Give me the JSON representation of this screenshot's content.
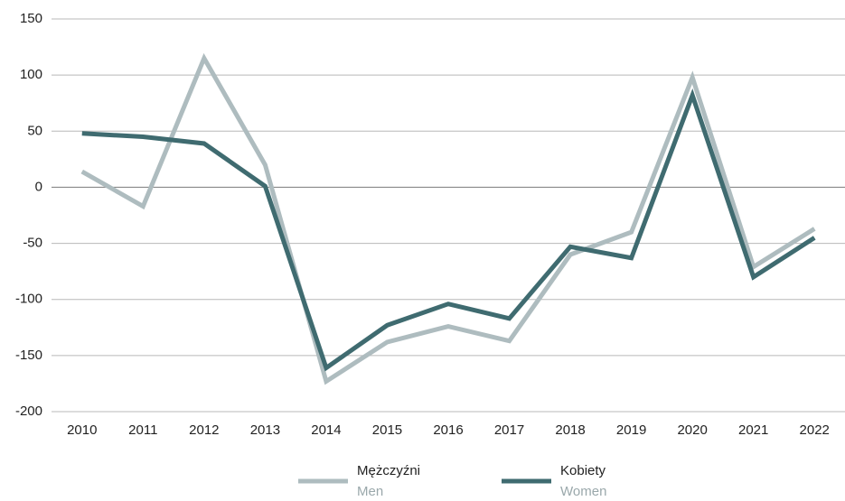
{
  "chart_data": {
    "type": "line",
    "categories": [
      "2010",
      "2011",
      "2012",
      "2013",
      "2014",
      "2015",
      "2016",
      "2017",
      "2018",
      "2019",
      "2020",
      "2021",
      "2022"
    ],
    "series": [
      {
        "name": "Mężczyźni",
        "name_en": "Men",
        "color": "#aebcbf",
        "values": [
          14,
          -17,
          115,
          20,
          -173,
          -138,
          -124,
          -137,
          -60,
          -40,
          98,
          -71,
          -37
        ]
      },
      {
        "name": "Kobiety",
        "name_en": "Women",
        "color": "#3f6b70",
        "values": [
          48,
          45,
          39,
          1,
          -161,
          -123,
          -104,
          -117,
          -53,
          -63,
          82,
          -80,
          -45
        ]
      }
    ],
    "ylim": [
      -200,
      150
    ],
    "yticks": [
      -200,
      -150,
      -100,
      -50,
      0,
      50,
      100,
      150
    ],
    "grid": true,
    "legend": "bottom"
  }
}
